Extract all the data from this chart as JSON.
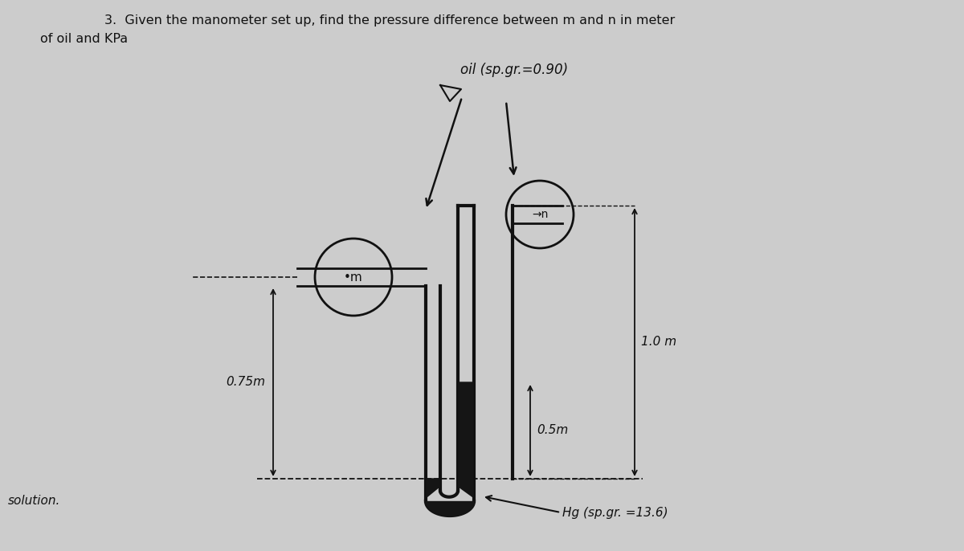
{
  "title_line1": "3.  Given the manometer set up, find the pressure difference between m and n in meter",
  "title_line2": "of oil and KPa",
  "bg_color": "#cccccc",
  "line_color": "#111111",
  "text_color": "#111111",
  "solution_label": "solution.",
  "oil_label": "oil (sp.gr.=0.90)",
  "hg_label": "Hg (sp.gr. =13.6)",
  "label_m": "•m",
  "label_n": "→n",
  "dim_075": "0.75m",
  "dim_05": "0.5m",
  "dim_10": "1.0 m"
}
